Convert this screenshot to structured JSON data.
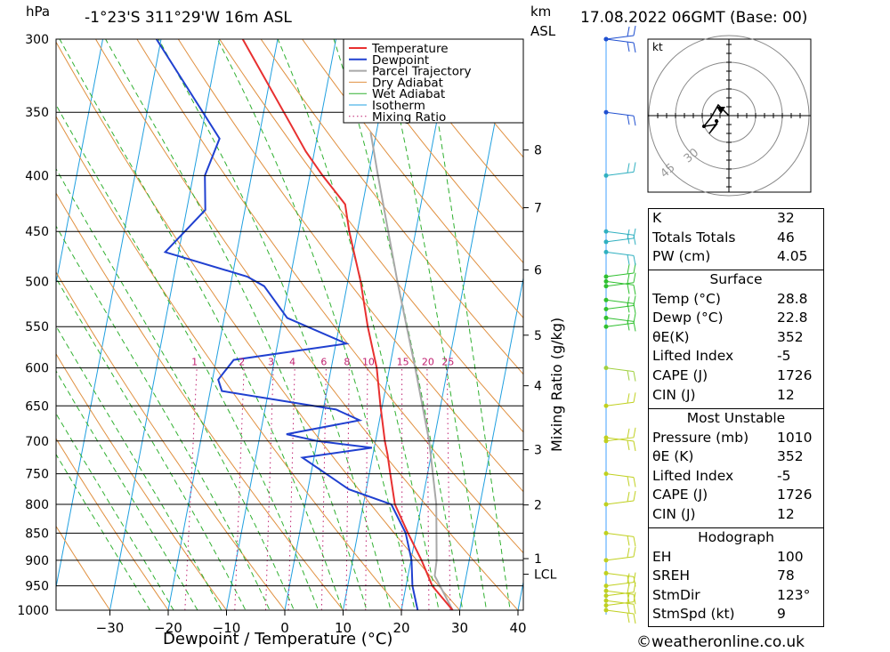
{
  "header": {
    "location": "-1°23'S 311°29'W 16m ASL",
    "datetime": "17.08.2022 06GMT (Base: 00)",
    "hpa_unit": "hPa",
    "km_unit": "km",
    "asl_unit": "ASL"
  },
  "footer": {
    "copyright": "©weatheronline.co.uk"
  },
  "chart_data": {
    "type": "skew-t",
    "xlabel": "Dewpoint / Temperature (°C)",
    "mixing_label": "Mixing Ratio (g/kg)",
    "pressure_ticks": [
      300,
      350,
      400,
      450,
      500,
      550,
      600,
      650,
      700,
      750,
      800,
      850,
      900,
      950,
      1000
    ],
    "temp_ticks": [
      -30,
      -20,
      -10,
      0,
      10,
      20,
      30,
      40
    ],
    "km_ticks": [
      {
        "label": "8",
        "p": 379
      },
      {
        "label": "7",
        "p": 428
      },
      {
        "label": "6",
        "p": 488
      },
      {
        "label": "5",
        "p": 560
      },
      {
        "label": "4",
        "p": 623
      },
      {
        "label": "3",
        "p": 713
      },
      {
        "label": "2",
        "p": 801
      },
      {
        "label": "1",
        "p": 897
      },
      {
        "label": "LCL",
        "p": 927
      }
    ],
    "mixing_ratio_labels": [
      "1",
      "2",
      "3",
      "4",
      "6",
      "8",
      "10",
      "15",
      "20",
      "25"
    ],
    "legend": [
      "Temperature",
      "Dewpoint",
      "Parcel Trajectory",
      "Dry Adiabat",
      "Wet Adiabat",
      "Isotherm",
      "Mixing Ratio"
    ],
    "colors": {
      "temperature": "#e83030",
      "dewpoint": "#2040d0",
      "parcel": "#a8a8a8",
      "dry": "#e09040",
      "wet": "#30b030",
      "isotherm": "#20a0e0",
      "mixing": "#c02070"
    },
    "temperature": [
      [
        1000,
        28.8
      ],
      [
        950,
        24.5
      ],
      [
        900,
        21.8
      ],
      [
        850,
        18.6
      ],
      [
        800,
        15.4
      ],
      [
        750,
        13.6
      ],
      [
        720,
        12.5
      ],
      [
        700,
        11.6
      ],
      [
        650,
        9.7
      ],
      [
        600,
        7.8
      ],
      [
        550,
        4.9
      ],
      [
        500,
        2.2
      ],
      [
        450,
        -1.4
      ],
      [
        425,
        -3.0
      ],
      [
        400,
        -7.8
      ],
      [
        380,
        -11.5
      ],
      [
        360,
        -14.8
      ],
      [
        300,
        -26.0
      ]
    ],
    "dewpoint": [
      [
        1000,
        22.8
      ],
      [
        950,
        21.1
      ],
      [
        900,
        20.1
      ],
      [
        850,
        18.2
      ],
      [
        800,
        14.8
      ],
      [
        775,
        7.0
      ],
      [
        725,
        -2.0
      ],
      [
        710,
        9.6
      ],
      [
        700,
        0.0
      ],
      [
        690,
        -5.5
      ],
      [
        670,
        6.6
      ],
      [
        655,
        2.2
      ],
      [
        630,
        -18.0
      ],
      [
        615,
        -19.0
      ],
      [
        590,
        -17.0
      ],
      [
        570,
        1.8
      ],
      [
        540,
        -9.2
      ],
      [
        505,
        -14.2
      ],
      [
        495,
        -17.4
      ],
      [
        470,
        -32.3
      ],
      [
        430,
        -26.8
      ],
      [
        400,
        -28.0
      ],
      [
        370,
        -26.7
      ],
      [
        300,
        -40.8
      ]
    ],
    "parcel": [
      [
        1000,
        28.8
      ],
      [
        930,
        24.6
      ],
      [
        900,
        24.4
      ],
      [
        800,
        22.5
      ],
      [
        700,
        19.2
      ],
      [
        600,
        14.4
      ],
      [
        500,
        8.5
      ],
      [
        400,
        1.7
      ],
      [
        365,
        -1.0
      ]
    ],
    "wind_barbs_p": [
      1000,
      990,
      980,
      970,
      960,
      950,
      925,
      900,
      850,
      800,
      750,
      700,
      695,
      650,
      600,
      550,
      540,
      530,
      520,
      505,
      500,
      495,
      470,
      460,
      450,
      400,
      350,
      300,
      300
    ],
    "hodograph": {
      "unit": "kt",
      "ring_labels": [
        "30",
        "45"
      ]
    },
    "indices": [
      {
        "label": "K",
        "value": "32"
      },
      {
        "label": "Totals Totals",
        "value": "46"
      },
      {
        "label": "PW (cm)",
        "value": "4.05"
      }
    ],
    "surface": {
      "title": "Surface",
      "rows": [
        {
          "label": "Temp (°C)",
          "value": "28.8"
        },
        {
          "label": "Dewp (°C)",
          "value": "22.8"
        },
        {
          "label": "θE(K)",
          "value": "352"
        },
        {
          "label": "Lifted Index",
          "value": "-5"
        },
        {
          "label": "CAPE (J)",
          "value": "1726"
        },
        {
          "label": "CIN (J)",
          "value": "12"
        }
      ]
    },
    "most_unstable": {
      "title": "Most Unstable",
      "rows": [
        {
          "label": "Pressure (mb)",
          "value": "1010"
        },
        {
          "label": "θE (K)",
          "value": "352"
        },
        {
          "label": "Lifted Index",
          "value": "-5"
        },
        {
          "label": "CAPE (J)",
          "value": "1726"
        },
        {
          "label": "CIN (J)",
          "value": "12"
        }
      ]
    },
    "hodograph_params": {
      "title": "Hodograph",
      "rows": [
        {
          "label": "EH",
          "value": "100"
        },
        {
          "label": "SREH",
          "value": "78"
        },
        {
          "label": "StmDir",
          "value": "123°"
        },
        {
          "label": "StmSpd (kt)",
          "value": "9"
        }
      ]
    }
  }
}
